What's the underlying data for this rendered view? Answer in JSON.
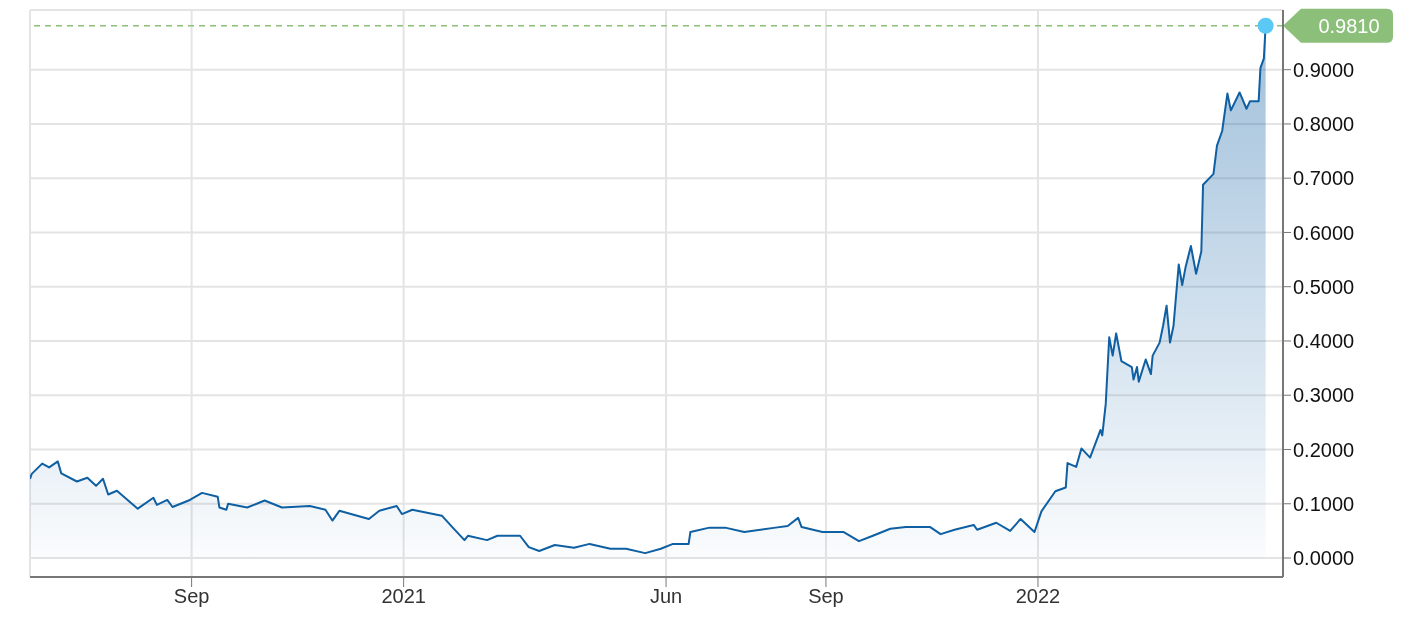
{
  "chart_data": {
    "type": "area",
    "x": [
      "2020-05-31",
      "2020-06-01",
      "2020-06-07",
      "2020-06-11",
      "2020-06-16",
      "2020-06-18",
      "2020-06-27",
      "2020-07-03",
      "2020-07-08",
      "2020-07-12",
      "2020-07-15",
      "2020-07-20",
      "2020-08-01",
      "2020-08-10",
      "2020-08-12",
      "2020-08-18",
      "2020-08-21",
      "2020-08-31",
      "2020-09-07",
      "2020-09-16",
      "2020-09-17",
      "2020-09-21",
      "2020-09-22",
      "2020-10-03",
      "2020-10-13",
      "2020-10-23",
      "2020-11-08",
      "2020-11-17",
      "2020-11-21",
      "2020-11-25",
      "2020-12-12",
      "2020-12-18",
      "2020-12-28",
      "2020-12-31",
      "2021-01-06",
      "2021-01-23",
      "2021-01-29",
      "2021-02-05",
      "2021-02-07",
      "2021-02-18",
      "2021-02-24",
      "2021-03-09",
      "2021-03-14",
      "2021-03-20",
      "2021-03-29",
      "2021-04-09",
      "2021-04-18",
      "2021-04-30",
      "2021-05-09",
      "2021-05-20",
      "2021-05-29",
      "2021-06-05",
      "2021-06-14",
      "2021-06-15",
      "2021-06-26",
      "2021-07-05",
      "2021-07-16",
      "2021-08-03",
      "2021-08-10",
      "2021-08-16",
      "2021-08-18",
      "2021-08-30",
      "2021-09-11",
      "2021-09-20",
      "2021-09-28",
      "2021-10-08",
      "2021-10-17",
      "2021-10-31",
      "2021-11-06",
      "2021-11-14",
      "2021-11-25",
      "2021-11-27",
      "2021-12-08",
      "2021-12-16",
      "2021-12-22",
      "2021-12-30",
      "2022-01-03",
      "2022-01-11",
      "2022-01-17",
      "2022-01-18",
      "2022-01-23",
      "2022-01-26",
      "2022-01-31",
      "2022-02-06",
      "2022-02-07",
      "2022-02-09",
      "2022-02-11",
      "2022-02-13",
      "2022-02-15",
      "2022-02-18",
      "2022-02-24",
      "2022-02-25",
      "2022-02-27",
      "2022-02-28",
      "2022-03-04",
      "2022-03-07",
      "2022-03-08",
      "2022-03-12",
      "2022-03-14",
      "2022-03-16",
      "2022-03-18",
      "2022-03-20",
      "2022-03-23",
      "2022-03-25",
      "2022-03-27",
      "2022-03-30",
      "2022-04-02",
      "2022-04-05",
      "2022-04-06",
      "2022-04-12",
      "2022-04-14",
      "2022-04-17",
      "2022-04-20",
      "2022-04-22",
      "2022-04-27",
      "2022-05-01",
      "2022-05-03",
      "2022-05-08",
      "2022-05-09",
      "2022-05-11",
      "2022-05-12"
    ],
    "series": [
      {
        "color": "#0f5fa3",
        "values": [
          0.146,
          0.155,
          0.174,
          0.167,
          0.178,
          0.156,
          0.141,
          0.148,
          0.133,
          0.146,
          0.117,
          0.124,
          0.091,
          0.111,
          0.098,
          0.107,
          0.094,
          0.107,
          0.12,
          0.113,
          0.093,
          0.089,
          0.1,
          0.093,
          0.106,
          0.093,
          0.096,
          0.089,
          0.069,
          0.087,
          0.072,
          0.087,
          0.096,
          0.081,
          0.089,
          0.078,
          0.057,
          0.033,
          0.041,
          0.033,
          0.041,
          0.041,
          0.02,
          0.013,
          0.024,
          0.019,
          0.026,
          0.017,
          0.017,
          0.009,
          0.017,
          0.026,
          0.026,
          0.048,
          0.056,
          0.056,
          0.048,
          0.056,
          0.059,
          0.074,
          0.057,
          0.048,
          0.048,
          0.031,
          0.041,
          0.054,
          0.057,
          0.057,
          0.044,
          0.052,
          0.061,
          0.052,
          0.065,
          0.05,
          0.072,
          0.048,
          0.086,
          0.123,
          0.13,
          0.175,
          0.168,
          0.202,
          0.185,
          0.236,
          0.226,
          0.284,
          0.407,
          0.373,
          0.414,
          0.363,
          0.352,
          0.329,
          0.352,
          0.325,
          0.366,
          0.339,
          0.373,
          0.397,
          0.428,
          0.465,
          0.397,
          0.428,
          0.541,
          0.503,
          0.537,
          0.575,
          0.524,
          0.565,
          0.688,
          0.708,
          0.76,
          0.787,
          0.856,
          0.825,
          0.858,
          0.828,
          0.842,
          0.842,
          0.903,
          0.921,
          0.981
        ]
      }
    ],
    "xlim": [
      "2020-05-31",
      "2022-05-22"
    ],
    "xticks": [
      {
        "value": "2020-09-01",
        "label": "Sep"
      },
      {
        "value": "2021-01-01",
        "label": "2021"
      },
      {
        "value": "2021-06-01",
        "label": "Jun"
      },
      {
        "value": "2021-09-01",
        "label": "Sep"
      },
      {
        "value": "2022-01-01",
        "label": "2022"
      }
    ],
    "ylim": [
      -0.035,
      1.01
    ],
    "yticks": [
      {
        "value": 0,
        "label": "0.0000"
      },
      {
        "value": 0.1,
        "label": "0.1000"
      },
      {
        "value": 0.2,
        "label": "0.2000"
      },
      {
        "value": 0.3,
        "label": "0.3000"
      },
      {
        "value": 0.4,
        "label": "0.4000"
      },
      {
        "value": 0.5,
        "label": "0.5000"
      },
      {
        "value": 0.6,
        "label": "0.6000"
      },
      {
        "value": 0.7,
        "label": "0.7000"
      },
      {
        "value": 0.8,
        "label": "0.8000"
      },
      {
        "value": 0.9,
        "label": "0.9000"
      }
    ],
    "ref_lines": [
      {
        "axis": "y",
        "value": 0.981,
        "label": "0.9810",
        "color": "#8cc07a",
        "line_style": "dashed"
      }
    ],
    "grid": true,
    "legend": false
  }
}
